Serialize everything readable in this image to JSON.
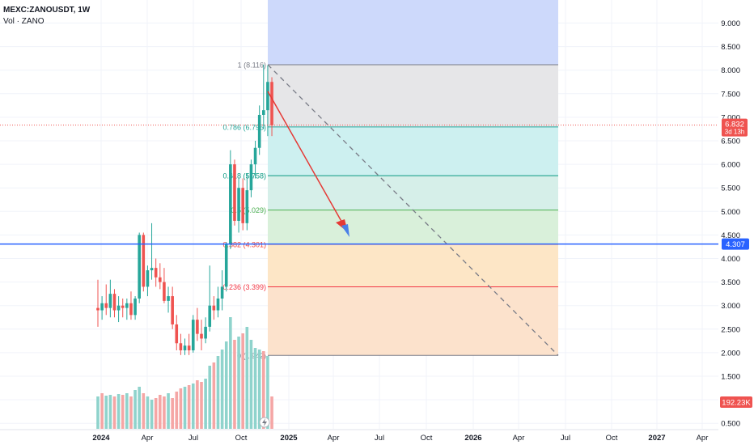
{
  "legend": {
    "symbol": "MEXC:ZANOUSDT, 1W",
    "volume": "Vol · ZANO"
  },
  "colors": {
    "up": "#26a69a",
    "down": "#ef5350",
    "up_volume": "#8fd3cc",
    "down_volume": "#f5a6a5",
    "horizontal_line": "#2962ff",
    "arrow": "#e53935"
  },
  "price_labels": {
    "last_price": "6.832",
    "countdown": "3d 13h",
    "hline": "4.307",
    "volume": "192.23K"
  },
  "chart_data": {
    "type": "candlestick",
    "symbol": "MEXC:ZANOUSDT",
    "interval": "1W",
    "y_axis": {
      "range": [
        0.5,
        9.5
      ],
      "ticks": [
        "0.500",
        "1.000",
        "1.500",
        "2.000",
        "2.500",
        "3.000",
        "3.500",
        "4.000",
        "4.500",
        "5.000",
        "5.500",
        "6.000",
        "6.500",
        "7.000",
        "7.500",
        "8.000",
        "8.500",
        "9.000"
      ]
    },
    "x_axis": {
      "ticks": [
        "2024",
        "Apr",
        "Jul",
        "Oct",
        "2025",
        "Apr",
        "Jul",
        "Oct",
        "2026",
        "Apr",
        "Jul",
        "Oct",
        "2027",
        "Apr"
      ],
      "bold_ticks": [
        "2024",
        "2025",
        "2026",
        "2027"
      ]
    },
    "candles": [
      {
        "o": 2.95,
        "h": 3.55,
        "l": 2.55,
        "c": 2.9
      },
      {
        "o": 2.9,
        "h": 3.2,
        "l": 2.7,
        "c": 3.05
      },
      {
        "o": 3.05,
        "h": 3.45,
        "l": 2.8,
        "c": 2.95
      },
      {
        "o": 2.95,
        "h": 3.55,
        "l": 2.75,
        "c": 3.25
      },
      {
        "o": 3.25,
        "h": 3.35,
        "l": 2.75,
        "c": 2.9
      },
      {
        "o": 2.9,
        "h": 3.2,
        "l": 2.65,
        "c": 3.0
      },
      {
        "o": 3.0,
        "h": 3.15,
        "l": 2.75,
        "c": 2.95
      },
      {
        "o": 2.95,
        "h": 3.15,
        "l": 2.7,
        "c": 3.05
      },
      {
        "o": 3.05,
        "h": 3.3,
        "l": 2.7,
        "c": 2.8
      },
      {
        "o": 2.8,
        "h": 3.2,
        "l": 2.7,
        "c": 3.15
      },
      {
        "o": 3.15,
        "h": 4.55,
        "l": 3.05,
        "c": 4.5
      },
      {
        "o": 4.5,
        "h": 4.55,
        "l": 3.3,
        "c": 3.4
      },
      {
        "o": 3.4,
        "h": 3.85,
        "l": 3.2,
        "c": 3.75
      },
      {
        "o": 3.75,
        "h": 4.75,
        "l": 3.55,
        "c": 3.8
      },
      {
        "o": 3.8,
        "h": 4.0,
        "l": 3.4,
        "c": 3.6
      },
      {
        "o": 3.6,
        "h": 3.9,
        "l": 3.35,
        "c": 3.5
      },
      {
        "o": 3.5,
        "h": 3.8,
        "l": 3.05,
        "c": 3.1
      },
      {
        "o": 3.1,
        "h": 3.4,
        "l": 2.85,
        "c": 3.2
      },
      {
        "o": 3.2,
        "h": 3.4,
        "l": 2.5,
        "c": 2.6
      },
      {
        "o": 2.6,
        "h": 2.8,
        "l": 2.05,
        "c": 2.2
      },
      {
        "o": 2.2,
        "h": 2.4,
        "l": 1.95,
        "c": 2.05
      },
      {
        "o": 2.05,
        "h": 2.3,
        "l": 1.95,
        "c": 2.15
      },
      {
        "o": 2.15,
        "h": 2.4,
        "l": 1.95,
        "c": 2.05
      },
      {
        "o": 2.05,
        "h": 2.8,
        "l": 2.0,
        "c": 2.7
      },
      {
        "o": 2.7,
        "h": 2.95,
        "l": 2.25,
        "c": 2.4
      },
      {
        "o": 2.4,
        "h": 2.7,
        "l": 2.05,
        "c": 2.3
      },
      {
        "o": 2.3,
        "h": 2.75,
        "l": 2.2,
        "c": 2.55
      },
      {
        "o": 2.55,
        "h": 3.85,
        "l": 2.45,
        "c": 3.0
      },
      {
        "o": 3.0,
        "h": 3.2,
        "l": 2.7,
        "c": 2.9
      },
      {
        "o": 2.9,
        "h": 3.4,
        "l": 2.75,
        "c": 3.15
      },
      {
        "o": 3.15,
        "h": 3.75,
        "l": 2.9,
        "c": 3.4
      },
      {
        "o": 3.4,
        "h": 4.35,
        "l": 3.3,
        "c": 4.3
      },
      {
        "o": 4.3,
        "h": 6.3,
        "l": 4.2,
        "c": 6.0
      },
      {
        "o": 6.0,
        "h": 6.1,
        "l": 4.7,
        "c": 4.8
      },
      {
        "o": 4.8,
        "h": 5.7,
        "l": 4.55,
        "c": 5.5
      },
      {
        "o": 5.5,
        "h": 5.7,
        "l": 4.6,
        "c": 4.75
      },
      {
        "o": 4.75,
        "h": 5.8,
        "l": 4.6,
        "c": 5.45
      },
      {
        "o": 5.45,
        "h": 6.1,
        "l": 5.3,
        "c": 6.0
      },
      {
        "o": 6.0,
        "h": 6.5,
        "l": 5.7,
        "c": 6.35
      },
      {
        "o": 6.35,
        "h": 7.25,
        "l": 6.2,
        "c": 7.05
      },
      {
        "o": 7.05,
        "h": 8.12,
        "l": 6.75,
        "c": 7.15
      },
      {
        "o": 7.15,
        "h": 8.1,
        "l": 6.6,
        "c": 7.75
      },
      {
        "o": 7.75,
        "h": 7.85,
        "l": 6.6,
        "c": 6.83
      }
    ],
    "volume": [
      {
        "v": 40,
        "up": true
      },
      {
        "v": 44,
        "up": false
      },
      {
        "v": 41,
        "up": true
      },
      {
        "v": 42,
        "up": true
      },
      {
        "v": 40,
        "up": false
      },
      {
        "v": 43,
        "up": true
      },
      {
        "v": 42,
        "up": false
      },
      {
        "v": 44,
        "up": true
      },
      {
        "v": 40,
        "up": false
      },
      {
        "v": 48,
        "up": true
      },
      {
        "v": 52,
        "up": true
      },
      {
        "v": 44,
        "up": false
      },
      {
        "v": 40,
        "up": true
      },
      {
        "v": 36,
        "up": true
      },
      {
        "v": 38,
        "up": false
      },
      {
        "v": 42,
        "up": false
      },
      {
        "v": 40,
        "up": false
      },
      {
        "v": 44,
        "up": true
      },
      {
        "v": 38,
        "up": false
      },
      {
        "v": 46,
        "up": false
      },
      {
        "v": 50,
        "up": false
      },
      {
        "v": 52,
        "up": true
      },
      {
        "v": 54,
        "up": false
      },
      {
        "v": 56,
        "up": true
      },
      {
        "v": 60,
        "up": false
      },
      {
        "v": 58,
        "up": false
      },
      {
        "v": 62,
        "up": true
      },
      {
        "v": 78,
        "up": true
      },
      {
        "v": 82,
        "up": false
      },
      {
        "v": 90,
        "up": true
      },
      {
        "v": 98,
        "up": true
      },
      {
        "v": 108,
        "up": true
      },
      {
        "v": 138,
        "up": true
      },
      {
        "v": 110,
        "up": false
      },
      {
        "v": 114,
        "up": true
      },
      {
        "v": 118,
        "up": false
      },
      {
        "v": 126,
        "up": true
      },
      {
        "v": 110,
        "up": true
      },
      {
        "v": 100,
        "up": true
      },
      {
        "v": 98,
        "up": true
      },
      {
        "v": 96,
        "up": false
      },
      {
        "v": 90,
        "up": true
      },
      {
        "v": 40,
        "up": false
      }
    ],
    "fibonacci": {
      "levels": [
        {
          "ratio": "1",
          "price": 8.116,
          "label": "1 (8.116)",
          "line_color": "#787b86",
          "fill": "#e6e6e8"
        },
        {
          "ratio": "0.786",
          "price": 6.795,
          "label": "0.786 (6.795)",
          "line_color": "#26a69a",
          "fill": "#cdf0f0"
        },
        {
          "ratio": "0.618",
          "price": 5.758,
          "label": "0.618 (5.758)",
          "line_color": "#089981",
          "fill": "#d6efe9"
        },
        {
          "ratio": "0.5",
          "price": 5.029,
          "label": "0.5 (5.029)",
          "line_color": "#4caf50",
          "fill": "#d9f0da"
        },
        {
          "ratio": "0.382",
          "price": 4.301,
          "label": "0.382 (4.301)",
          "line_color": "#f44336",
          "fill": "#fde6c6"
        },
        {
          "ratio": "0.236",
          "price": 3.399,
          "label": "0.236 (3.399)",
          "line_color": "#f23645",
          "fill": "#fce2cc"
        },
        {
          "ratio": "0",
          "price": 1.942,
          "label": "0 (1.942)",
          "line_color": "#787b86",
          "fill": "#f8d6d9"
        }
      ],
      "extension_fill": "#cdd9fb"
    },
    "horizontal_line": {
      "price": 4.307,
      "label": "4.307"
    },
    "last_price": {
      "price": 6.832,
      "label": "6.832",
      "countdown": "3d 13h"
    }
  }
}
